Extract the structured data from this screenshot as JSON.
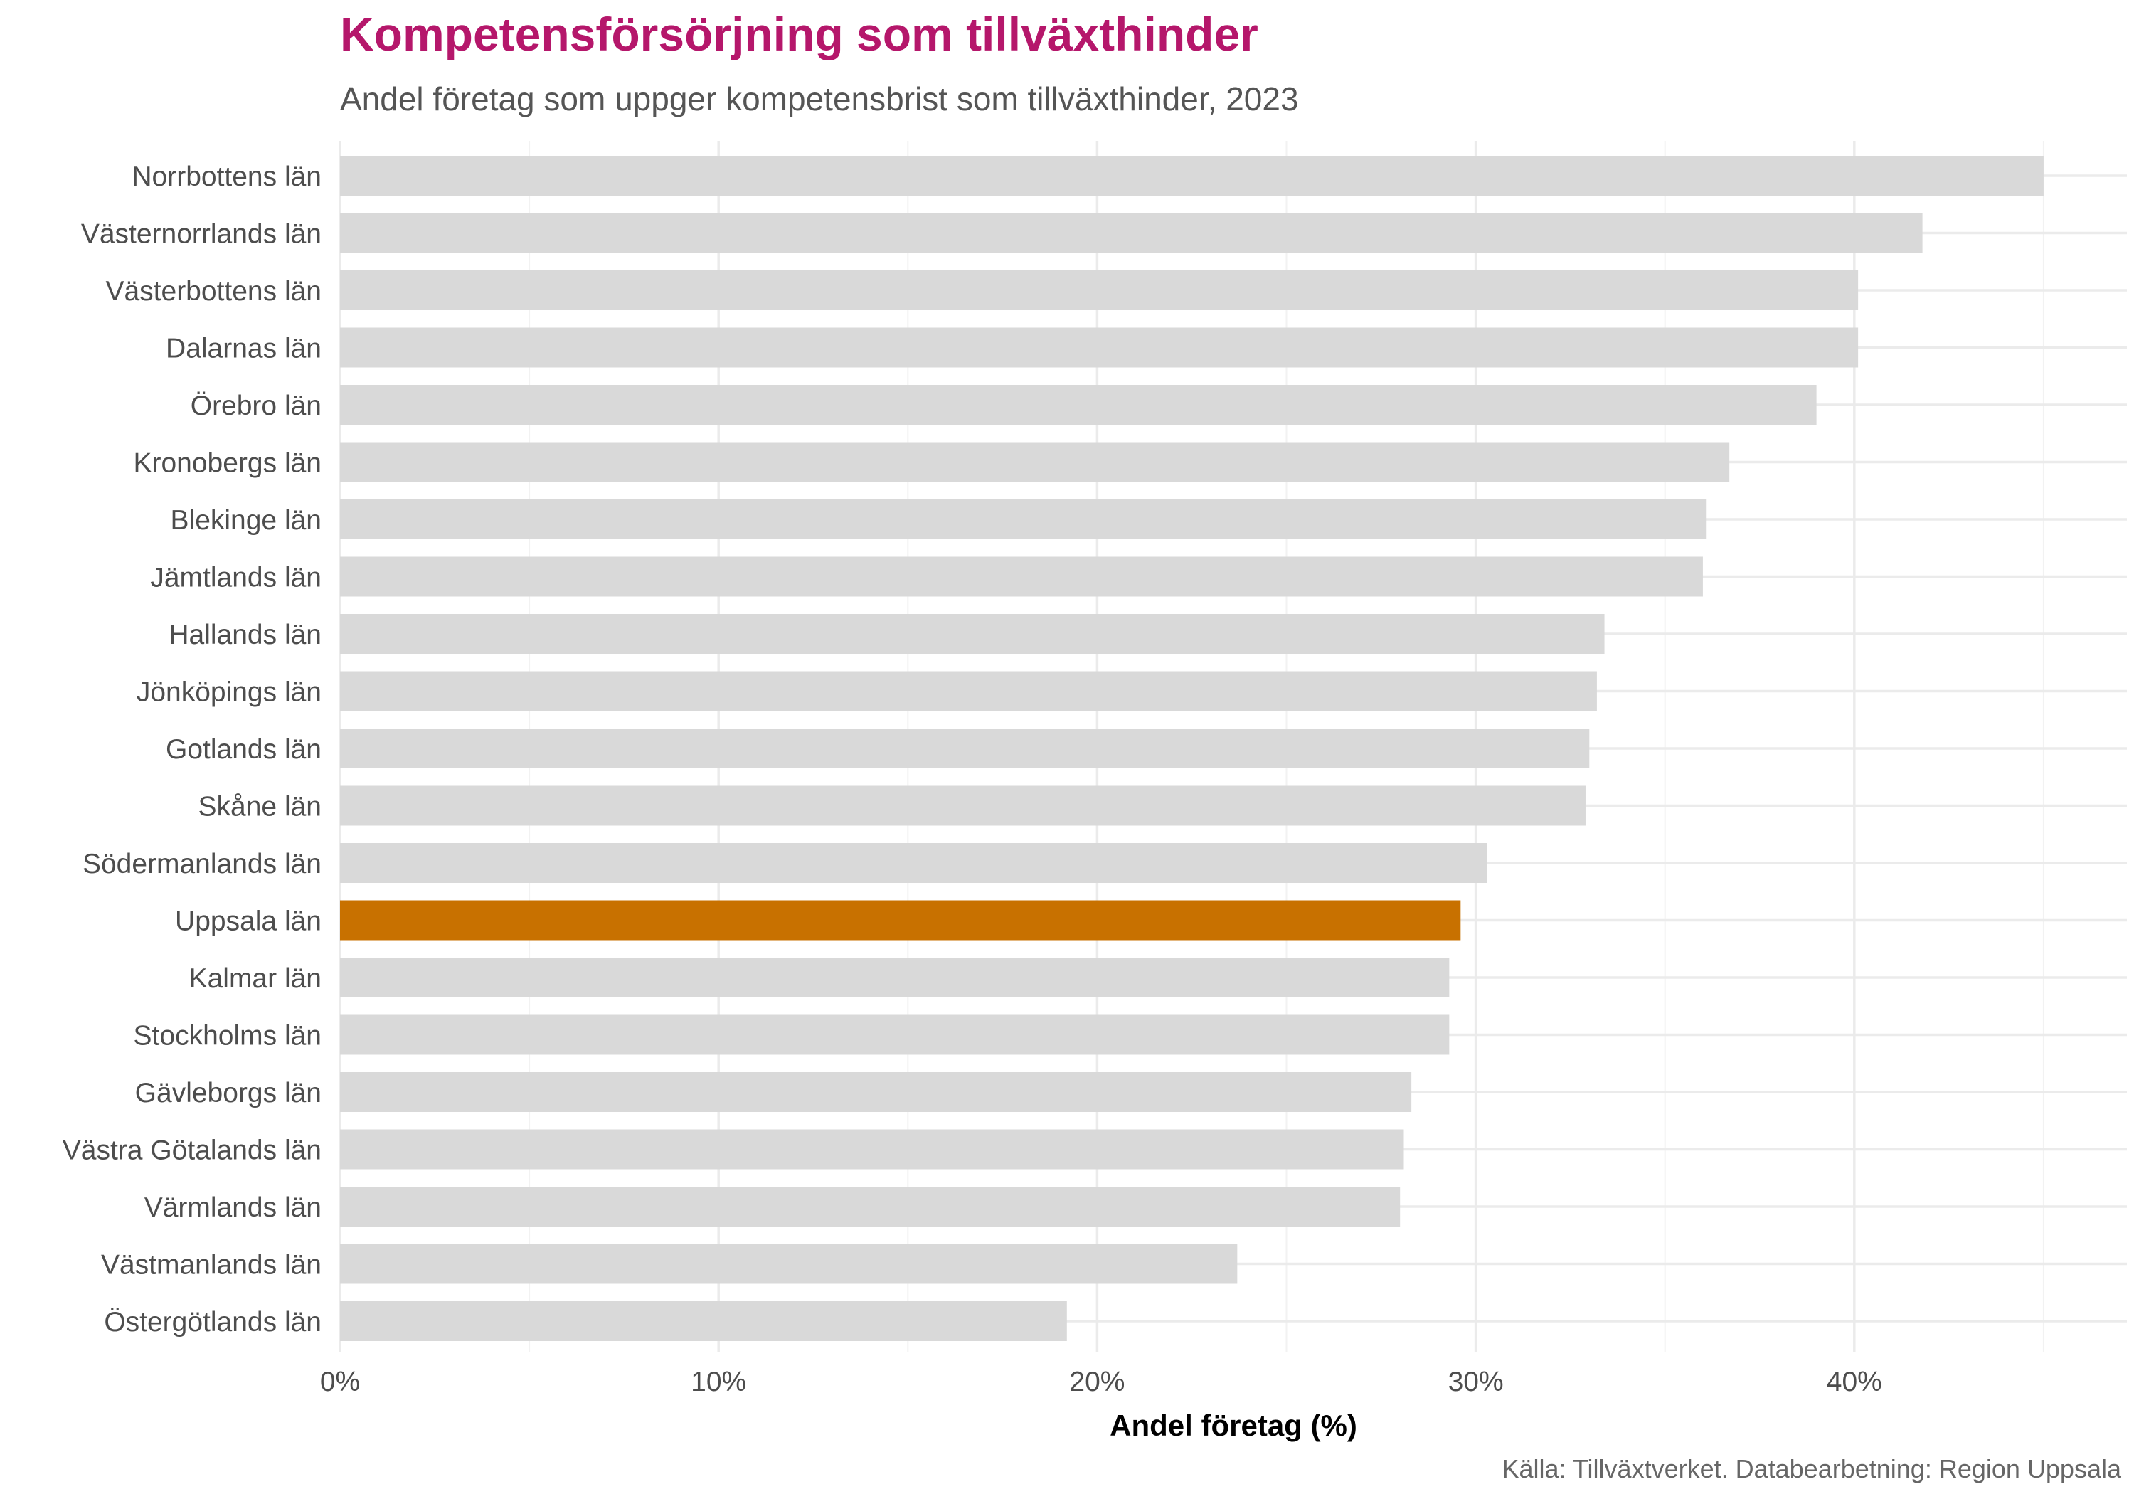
{
  "title": "Kompetensförsörjning som tillväxthinder",
  "subtitle": "Andel företag som uppger kompetensbrist som tillväxthinder, 2023",
  "caption": "Källa: Tillväxtverket. Databearbetning: Region Uppsala",
  "colors": {
    "bar": "#d9d9d9",
    "highlight": "#c87100",
    "title": "#b5176b",
    "grid": "#ebebeb"
  },
  "chart_data": {
    "type": "bar",
    "orientation": "horizontal",
    "title": "Kompetensförsörjning som tillväxthinder",
    "subtitle": "Andel företag som uppger kompetensbrist som tillväxthinder, 2023",
    "xlabel": "Andel företag (%)",
    "ylabel": "",
    "xlim": [
      0,
      47.2
    ],
    "x_ticks": [
      0,
      10,
      20,
      30,
      40
    ],
    "x_tick_labels": [
      "0%",
      "10%",
      "20%",
      "30%",
      "40%"
    ],
    "highlight": "Uppsala län",
    "categories": [
      "Norrbottens län",
      "Västernorrlands län",
      "Västerbottens län",
      "Dalarnas län",
      "Örebro län",
      "Kronobergs län",
      "Blekinge län",
      "Jämtlands län",
      "Hallands län",
      "Jönköpings län",
      "Gotlands län",
      "Skåne län",
      "Södermanlands län",
      "Uppsala län",
      "Kalmar län",
      "Stockholms län",
      "Gävleborgs län",
      "Västra Götalands län",
      "Värmlands län",
      "Västmanlands län",
      "Östergötlands län"
    ],
    "values": [
      45.0,
      41.8,
      40.1,
      40.1,
      39.0,
      36.7,
      36.1,
      36.0,
      33.4,
      33.2,
      33.0,
      32.9,
      30.3,
      29.6,
      29.3,
      29.3,
      28.3,
      28.1,
      28.0,
      23.7,
      19.2
    ]
  }
}
